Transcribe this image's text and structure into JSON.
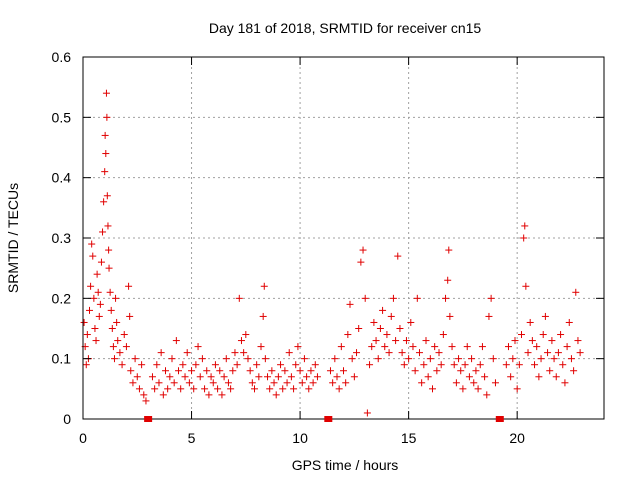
{
  "chart_data": {
    "type": "scatter",
    "title": "Day 181 of 2018, SRMTID for receiver cn15",
    "xlabel": "GPS time / hours",
    "ylabel": "SRMTID / TECUs",
    "xlim": [
      0,
      24
    ],
    "ylim": [
      0,
      0.6
    ],
    "xticks": [
      0,
      5,
      10,
      15,
      20
    ],
    "xtick_labels": [
      "0",
      "5",
      "10",
      "15",
      "20"
    ],
    "yticks": [
      0,
      0.1,
      0.2,
      0.3,
      0.4,
      0.5,
      0.6
    ],
    "ytick_labels": [
      "0",
      "0.1",
      "0.2",
      "0.3",
      "0.4",
      "0.5",
      "0.6"
    ],
    "grid": true,
    "marker": "plus",
    "color": "#e00000",
    "gap_markers_x": [
      3.0,
      11.3,
      19.2
    ],
    "series": [
      {
        "name": "SRMTID",
        "points": [
          [
            0.05,
            0.16
          ],
          [
            0.1,
            0.12
          ],
          [
            0.15,
            0.09
          ],
          [
            0.2,
            0.14
          ],
          [
            0.25,
            0.1
          ],
          [
            0.3,
            0.18
          ],
          [
            0.35,
            0.22
          ],
          [
            0.4,
            0.29
          ],
          [
            0.45,
            0.27
          ],
          [
            0.5,
            0.2
          ],
          [
            0.55,
            0.15
          ],
          [
            0.6,
            0.13
          ],
          [
            0.65,
            0.24
          ],
          [
            0.7,
            0.21
          ],
          [
            0.75,
            0.17
          ],
          [
            0.8,
            0.19
          ],
          [
            0.85,
            0.26
          ],
          [
            0.9,
            0.31
          ],
          [
            0.95,
            0.36
          ],
          [
            1.0,
            0.41
          ],
          [
            1.02,
            0.47
          ],
          [
            1.05,
            0.44
          ],
          [
            1.08,
            0.54
          ],
          [
            1.1,
            0.5
          ],
          [
            1.12,
            0.37
          ],
          [
            1.15,
            0.32
          ],
          [
            1.18,
            0.28
          ],
          [
            1.2,
            0.25
          ],
          [
            1.25,
            0.21
          ],
          [
            1.3,
            0.18
          ],
          [
            1.35,
            0.15
          ],
          [
            1.4,
            0.12
          ],
          [
            1.45,
            0.1
          ],
          [
            1.5,
            0.2
          ],
          [
            1.55,
            0.16
          ],
          [
            1.6,
            0.13
          ],
          [
            1.7,
            0.11
          ],
          [
            1.8,
            0.09
          ],
          [
            1.9,
            0.14
          ],
          [
            2.0,
            0.12
          ],
          [
            2.1,
            0.22
          ],
          [
            2.15,
            0.17
          ],
          [
            2.2,
            0.08
          ],
          [
            2.3,
            0.06
          ],
          [
            2.4,
            0.1
          ],
          [
            2.5,
            0.07
          ],
          [
            2.6,
            0.05
          ],
          [
            2.7,
            0.09
          ],
          [
            2.8,
            0.04
          ],
          [
            2.9,
            0.03
          ],
          [
            3.2,
            0.07
          ],
          [
            3.3,
            0.05
          ],
          [
            3.4,
            0.09
          ],
          [
            3.5,
            0.06
          ],
          [
            3.6,
            0.11
          ],
          [
            3.7,
            0.04
          ],
          [
            3.8,
            0.08
          ],
          [
            3.9,
            0.05
          ],
          [
            4.0,
            0.07
          ],
          [
            4.1,
            0.1
          ],
          [
            4.2,
            0.06
          ],
          [
            4.3,
            0.13
          ],
          [
            4.4,
            0.08
          ],
          [
            4.5,
            0.05
          ],
          [
            4.6,
            0.09
          ],
          [
            4.7,
            0.07
          ],
          [
            4.8,
            0.11
          ],
          [
            4.9,
            0.06
          ],
          [
            5.0,
            0.08
          ],
          [
            5.1,
            0.05
          ],
          [
            5.2,
            0.09
          ],
          [
            5.3,
            0.12
          ],
          [
            5.4,
            0.07
          ],
          [
            5.5,
            0.1
          ],
          [
            5.6,
            0.05
          ],
          [
            5.7,
            0.08
          ],
          [
            5.8,
            0.04
          ],
          [
            5.9,
            0.07
          ],
          [
            6.0,
            0.06
          ],
          [
            6.1,
            0.09
          ],
          [
            6.2,
            0.05
          ],
          [
            6.3,
            0.08
          ],
          [
            6.4,
            0.04
          ],
          [
            6.5,
            0.07
          ],
          [
            6.6,
            0.1
          ],
          [
            6.7,
            0.06
          ],
          [
            6.8,
            0.05
          ],
          [
            6.9,
            0.08
          ],
          [
            7.0,
            0.11
          ],
          [
            7.1,
            0.09
          ],
          [
            7.2,
            0.2
          ],
          [
            7.3,
            0.13
          ],
          [
            7.4,
            0.11
          ],
          [
            7.5,
            0.14
          ],
          [
            7.6,
            0.1
          ],
          [
            7.7,
            0.08
          ],
          [
            7.8,
            0.06
          ],
          [
            7.9,
            0.05
          ],
          [
            8.0,
            0.09
          ],
          [
            8.1,
            0.07
          ],
          [
            8.2,
            0.12
          ],
          [
            8.3,
            0.17
          ],
          [
            8.35,
            0.22
          ],
          [
            8.4,
            0.1
          ],
          [
            8.5,
            0.07
          ],
          [
            8.6,
            0.05
          ],
          [
            8.7,
            0.08
          ],
          [
            8.8,
            0.06
          ],
          [
            8.9,
            0.04
          ],
          [
            9.0,
            0.07
          ],
          [
            9.1,
            0.09
          ],
          [
            9.2,
            0.05
          ],
          [
            9.3,
            0.08
          ],
          [
            9.4,
            0.06
          ],
          [
            9.5,
            0.11
          ],
          [
            9.6,
            0.07
          ],
          [
            9.7,
            0.05
          ],
          [
            9.8,
            0.09
          ],
          [
            9.9,
            0.12
          ],
          [
            10.0,
            0.08
          ],
          [
            10.1,
            0.06
          ],
          [
            10.2,
            0.1
          ],
          [
            10.3,
            0.07
          ],
          [
            10.4,
            0.05
          ],
          [
            10.5,
            0.08
          ],
          [
            10.6,
            0.06
          ],
          [
            10.7,
            0.09
          ],
          [
            10.8,
            0.07
          ],
          [
            11.4,
            0.08
          ],
          [
            11.5,
            0.06
          ],
          [
            11.6,
            0.1
          ],
          [
            11.7,
            0.07
          ],
          [
            11.8,
            0.05
          ],
          [
            11.9,
            0.12
          ],
          [
            12.0,
            0.08
          ],
          [
            12.1,
            0.06
          ],
          [
            12.2,
            0.14
          ],
          [
            12.3,
            0.19
          ],
          [
            12.4,
            0.1
          ],
          [
            12.5,
            0.07
          ],
          [
            12.6,
            0.11
          ],
          [
            12.7,
            0.15
          ],
          [
            12.8,
            0.26
          ],
          [
            12.9,
            0.28
          ],
          [
            13.0,
            0.2
          ],
          [
            13.1,
            0.01
          ],
          [
            13.2,
            0.09
          ],
          [
            13.3,
            0.12
          ],
          [
            13.4,
            0.16
          ],
          [
            13.5,
            0.13
          ],
          [
            13.6,
            0.1
          ],
          [
            13.7,
            0.15
          ],
          [
            13.8,
            0.18
          ],
          [
            13.9,
            0.12
          ],
          [
            14.0,
            0.14
          ],
          [
            14.1,
            0.11
          ],
          [
            14.2,
            0.17
          ],
          [
            14.3,
            0.2
          ],
          [
            14.4,
            0.13
          ],
          [
            14.5,
            0.27
          ],
          [
            14.6,
            0.15
          ],
          [
            14.7,
            0.11
          ],
          [
            14.8,
            0.09
          ],
          [
            14.9,
            0.13
          ],
          [
            15.0,
            0.1
          ],
          [
            15.1,
            0.16
          ],
          [
            15.2,
            0.12
          ],
          [
            15.3,
            0.08
          ],
          [
            15.4,
            0.2
          ],
          [
            15.5,
            0.11
          ],
          [
            15.6,
            0.06
          ],
          [
            15.7,
            0.09
          ],
          [
            15.8,
            0.13
          ],
          [
            15.9,
            0.07
          ],
          [
            16.0,
            0.1
          ],
          [
            16.1,
            0.05
          ],
          [
            16.2,
            0.12
          ],
          [
            16.3,
            0.08
          ],
          [
            16.4,
            0.11
          ],
          [
            16.5,
            0.09
          ],
          [
            16.6,
            0.14
          ],
          [
            16.7,
            0.2
          ],
          [
            16.8,
            0.23
          ],
          [
            16.85,
            0.28
          ],
          [
            16.9,
            0.17
          ],
          [
            17.0,
            0.12
          ],
          [
            17.1,
            0.09
          ],
          [
            17.2,
            0.06
          ],
          [
            17.3,
            0.1
          ],
          [
            17.4,
            0.08
          ],
          [
            17.5,
            0.05
          ],
          [
            17.6,
            0.09
          ],
          [
            17.7,
            0.12
          ],
          [
            17.8,
            0.07
          ],
          [
            17.9,
            0.1
          ],
          [
            18.0,
            0.06
          ],
          [
            18.1,
            0.08
          ],
          [
            18.2,
            0.05
          ],
          [
            18.3,
            0.09
          ],
          [
            18.4,
            0.12
          ],
          [
            18.5,
            0.07
          ],
          [
            18.6,
            0.04
          ],
          [
            18.7,
            0.17
          ],
          [
            18.8,
            0.2
          ],
          [
            18.9,
            0.1
          ],
          [
            19.0,
            0.06
          ],
          [
            19.5,
            0.09
          ],
          [
            19.6,
            0.12
          ],
          [
            19.7,
            0.07
          ],
          [
            19.8,
            0.1
          ],
          [
            19.9,
            0.13
          ],
          [
            20.0,
            0.05
          ],
          [
            20.1,
            0.09
          ],
          [
            20.2,
            0.14
          ],
          [
            20.3,
            0.3
          ],
          [
            20.35,
            0.32
          ],
          [
            20.4,
            0.22
          ],
          [
            20.5,
            0.11
          ],
          [
            20.6,
            0.16
          ],
          [
            20.7,
            0.13
          ],
          [
            20.8,
            0.09
          ],
          [
            20.9,
            0.12
          ],
          [
            21.0,
            0.07
          ],
          [
            21.1,
            0.1
          ],
          [
            21.2,
            0.14
          ],
          [
            21.3,
            0.17
          ],
          [
            21.4,
            0.11
          ],
          [
            21.5,
            0.08
          ],
          [
            21.6,
            0.13
          ],
          [
            21.7,
            0.1
          ],
          [
            21.8,
            0.07
          ],
          [
            21.9,
            0.11
          ],
          [
            22.0,
            0.14
          ],
          [
            22.1,
            0.09
          ],
          [
            22.2,
            0.06
          ],
          [
            22.3,
            0.12
          ],
          [
            22.4,
            0.16
          ],
          [
            22.5,
            0.1
          ],
          [
            22.6,
            0.08
          ],
          [
            22.7,
            0.21
          ],
          [
            22.8,
            0.13
          ],
          [
            22.9,
            0.11
          ]
        ]
      }
    ]
  }
}
